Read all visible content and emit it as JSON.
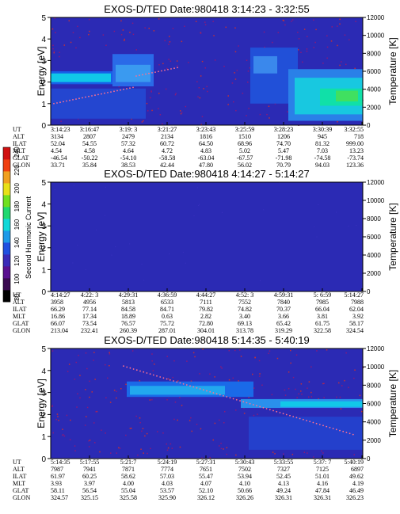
{
  "colorbar": {
    "label": "Second Harmonic Current",
    "ticks": [
      "80",
      "100",
      "120",
      "140",
      "160",
      "180",
      "200",
      "220",
      "240"
    ]
  },
  "chart_data": [
    {
      "type": "heatmap",
      "title": "EXOS-D/TED",
      "date": "Date:980418",
      "time_range": "3:14:23 - 3:32:55",
      "ylabel": "Energy [eV]",
      "y2label": "Temperature [K]",
      "ylim": [
        0,
        5
      ],
      "y_ticks": [
        "0",
        "1",
        "2",
        "3",
        "4",
        "5"
      ],
      "y2lim": [
        0,
        12000
      ],
      "y2_ticks": [
        "0",
        "2000",
        "4000",
        "6000",
        "8000",
        "10000",
        "12000"
      ],
      "table": {
        "row_labels": [
          "UT",
          "ALT",
          "ILAT",
          "MLT",
          "GLAT",
          "GLON"
        ],
        "columns": [
          [
            "3:14:23",
            "3134",
            "52.04",
            "4.54",
            "-46.54",
            "33.71"
          ],
          [
            "3:16:47",
            "2807",
            "54.55",
            "4.58",
            "-50.22",
            "35.84"
          ],
          [
            "3:19: 3",
            "2479",
            "57.32",
            "4.64",
            "-54.10",
            "38.53"
          ],
          [
            "3:21:27",
            "2134",
            "60.72",
            "4.72",
            "-58.58",
            "42.44"
          ],
          [
            "3:23:43",
            "1816",
            "64.50",
            "4.83",
            "-63.04",
            "47.80"
          ],
          [
            "3:25:59",
            "1510",
            "68.96",
            "5.02",
            "-67.57",
            "56.02"
          ],
          [
            "3:28:23",
            "1206",
            "74.70",
            "5.47",
            "-71.98",
            "70.79"
          ],
          [
            "3:30:39",
            "945",
            "81.32",
            "7.03",
            "-74.58",
            "94.03"
          ],
          [
            "3:32:55",
            "718",
            "999.00",
            "13.23",
            "-73.74",
            "123.36"
          ]
        ]
      }
    },
    {
      "type": "heatmap",
      "title": "EXOS-D/TED",
      "date": "Date:980418",
      "time_range": "4:14:27 - 5:14:27",
      "ylabel": "Energy [eV]",
      "y2label": "Temperature [K]",
      "ylim": [
        0,
        5
      ],
      "y_ticks": [
        "0",
        "1",
        "2",
        "3",
        "4",
        "5"
      ],
      "y2lim": [
        0,
        12000
      ],
      "y2_ticks": [
        "0",
        "2000",
        "4000",
        "6000",
        "8000",
        "10000",
        "12000"
      ],
      "table": {
        "row_labels": [
          "UT",
          "ALT",
          "ILAT",
          "MLT",
          "GLAT",
          "GLON"
        ],
        "columns": [
          [
            "4:14:27",
            "3958",
            "66.29",
            "16.86",
            "66.07",
            "213.04"
          ],
          [
            "4:22: 3",
            "4956",
            "77.14",
            "17.34",
            "73.54",
            "232.41"
          ],
          [
            "4:29:31",
            "5813",
            "84.58",
            "18.89",
            "76.57",
            "260.39"
          ],
          [
            "4:36:59",
            "6533",
            "84.71",
            "0.63",
            "75.72",
            "287.01"
          ],
          [
            "4:44:27",
            "7111",
            "79.82",
            "2.82",
            "72.80",
            "304.01"
          ],
          [
            "4:52: 3",
            "7552",
            "74.82",
            "3.40",
            "69.13",
            "313.78"
          ],
          [
            "4:59:31",
            "7840",
            "70.37",
            "3.66",
            "65.42",
            "319.29"
          ],
          [
            "5: 6:59",
            "7985",
            "66.04",
            "3.81",
            "61.75",
            "322.58"
          ],
          [
            "5:14:27",
            "7988",
            "62.04",
            "3.92",
            "58.17",
            "324.54"
          ]
        ]
      }
    },
    {
      "type": "heatmap",
      "title": "EXOS-D/TED",
      "date": "Date:980418",
      "time_range": "5:14:35 - 5:40:19",
      "ylabel": "Energy [eV]",
      "y2label": "Temperature [K]",
      "ylim": [
        0,
        5
      ],
      "y_ticks": [
        "0",
        "1",
        "2",
        "3",
        "4",
        "5"
      ],
      "y2lim": [
        0,
        12000
      ],
      "y2_ticks": [
        "0",
        "2000",
        "4000",
        "6000",
        "8000",
        "10000",
        "12000"
      ],
      "table": {
        "row_labels": [
          "UT",
          "ALT",
          "ILAT",
          "MLT",
          "GLAT",
          "GLON"
        ],
        "columns": [
          [
            "5:14:35",
            "7987",
            "61.97",
            "3.93",
            "58.11",
            "324.57"
          ],
          [
            "5:17:55",
            "7941",
            "60.25",
            "3.97",
            "56.54",
            "325.15"
          ],
          [
            "5:21:7",
            "7871",
            "58.62",
            "4.00",
            "55.04",
            "325.58"
          ],
          [
            "5:24:19",
            "7774",
            "57.03",
            "4.03",
            "53.57",
            "325.90"
          ],
          [
            "5:27:31",
            "7651",
            "55.47",
            "4.07",
            "52.10",
            "326.12"
          ],
          [
            "5:30:43",
            "7502",
            "53.94",
            "4.10",
            "50.66",
            "326.26"
          ],
          [
            "5:33:55",
            "7327",
            "52.45",
            "4.13",
            "49.24",
            "326.31"
          ],
          [
            "5:37: 7",
            "7125",
            "51.01",
            "4.16",
            "47.84",
            "326.31"
          ],
          [
            "5:40:19",
            "6897",
            "49.62",
            "4.19",
            "46.49",
            "326.23"
          ]
        ]
      }
    }
  ]
}
